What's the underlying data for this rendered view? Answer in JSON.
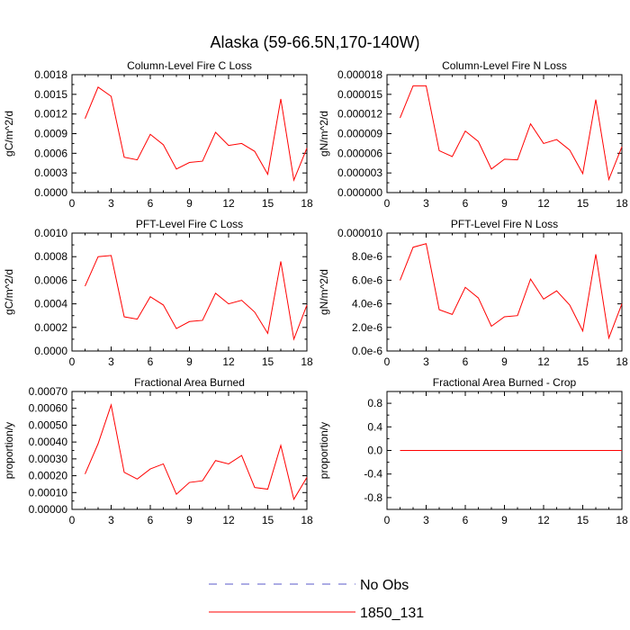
{
  "figure": {
    "title": "Alaska (59-66.5N,170-140W)"
  },
  "legend": {
    "placement": "bottom-center",
    "entries": [
      {
        "label": "No Obs",
        "color": "#5a5ac8",
        "dash": true
      },
      {
        "label": "1850_131",
        "color": "#ff0000",
        "dash": false
      }
    ]
  },
  "colors": {
    "series": "#ff0000",
    "axis": "#000000"
  },
  "chart_data": [
    {
      "type": "line",
      "title": "Column-Level Fire C Loss",
      "ylabel": "gC/m^2/d",
      "xlabel": "",
      "xlim": [
        0,
        18
      ],
      "xticks": [
        0,
        3,
        6,
        9,
        12,
        15,
        18
      ],
      "xtick_labels": [
        "0",
        "3",
        "6",
        "9",
        "12",
        "15",
        "18"
      ],
      "ylim": [
        0,
        0.0018
      ],
      "yticks": [
        0,
        0.0003,
        0.0006,
        0.0009,
        0.0012,
        0.0015,
        0.0018
      ],
      "ytick_labels": [
        "0.0000",
        "0.0003",
        "0.0006",
        "0.0009",
        "0.0012",
        "0.0015",
        "0.0018"
      ],
      "series": [
        {
          "name": "1850_131",
          "x": [
            1,
            2,
            3,
            4,
            5,
            6,
            7,
            8,
            9,
            10,
            11,
            12,
            13,
            14,
            15,
            16,
            17,
            18
          ],
          "values": [
            0.00113,
            0.00161,
            0.00147,
            0.00054,
            0.0005,
            0.00089,
            0.00073,
            0.00036,
            0.00046,
            0.00048,
            0.00092,
            0.00072,
            0.00075,
            0.00063,
            0.00028,
            0.00143,
            0.00019,
            0.00068
          ]
        }
      ]
    },
    {
      "type": "line",
      "title": "Column-Level Fire N Loss",
      "ylabel": "gN/m^2/d",
      "xlabel": "",
      "xlim": [
        0,
        18
      ],
      "xticks": [
        0,
        3,
        6,
        9,
        12,
        15,
        18
      ],
      "xtick_labels": [
        "0",
        "3",
        "6",
        "9",
        "12",
        "15",
        "18"
      ],
      "ylim": [
        0,
        1.8e-05
      ],
      "yticks": [
        0,
        3e-06,
        6e-06,
        9e-06,
        1.2e-05,
        1.5e-05,
        1.8e-05
      ],
      "ytick_labels": [
        "0.000000",
        "0.000003",
        "0.000006",
        "0.000009",
        "0.000012",
        "0.000015",
        "0.000018"
      ],
      "series": [
        {
          "name": "1850_131",
          "x": [
            1,
            2,
            3,
            4,
            5,
            6,
            7,
            8,
            9,
            10,
            11,
            12,
            13,
            14,
            15,
            16,
            17,
            18
          ],
          "values": [
            1.14e-05,
            1.63e-05,
            1.63e-05,
            6.4e-06,
            5.5e-06,
            9.4e-06,
            7.8e-06,
            3.6e-06,
            5.1e-06,
            5e-06,
            1.05e-05,
            7.5e-06,
            8.1e-06,
            6.5e-06,
            2.9e-06,
            1.42e-05,
            2e-06,
            7e-06
          ]
        }
      ]
    },
    {
      "type": "line",
      "title": "PFT-Level Fire C Loss",
      "ylabel": "gC/m^2/d",
      "xlabel": "",
      "xlim": [
        0,
        18
      ],
      "xticks": [
        0,
        3,
        6,
        9,
        12,
        15,
        18
      ],
      "xtick_labels": [
        "0",
        "3",
        "6",
        "9",
        "12",
        "15",
        "18"
      ],
      "ylim": [
        0,
        0.001
      ],
      "yticks": [
        0,
        0.0002,
        0.0004,
        0.0006,
        0.0008,
        0.001
      ],
      "ytick_labels": [
        "0.0000",
        "0.0002",
        "0.0004",
        "0.0006",
        "0.0008",
        "0.0010"
      ],
      "series": [
        {
          "name": "1850_131",
          "x": [
            1,
            2,
            3,
            4,
            5,
            6,
            7,
            8,
            9,
            10,
            11,
            12,
            13,
            14,
            15,
            16,
            17,
            18
          ],
          "values": [
            0.00055,
            0.0008,
            0.00081,
            0.00029,
            0.00027,
            0.00046,
            0.00039,
            0.00019,
            0.00025,
            0.00026,
            0.00049,
            0.0004,
            0.00043,
            0.00033,
            0.00015,
            0.00076,
            0.0001,
            0.00039
          ]
        }
      ]
    },
    {
      "type": "line",
      "title": "PFT-Level Fire N Loss",
      "ylabel": "gN/m^2/d",
      "xlabel": "",
      "xlim": [
        0,
        18
      ],
      "xticks": [
        0,
        3,
        6,
        9,
        12,
        15,
        18
      ],
      "xtick_labels": [
        "0",
        "3",
        "6",
        "9",
        "12",
        "15",
        "18"
      ],
      "ylim": [
        0,
        1e-05
      ],
      "yticks": [
        0,
        2e-06,
        4e-06,
        6e-06,
        8e-06,
        1e-05
      ],
      "ytick_labels": [
        "0.0e-6",
        "2.0e-6",
        "4.0e-6",
        "6.0e-6",
        "8.0e-6",
        "0.000010"
      ],
      "series": [
        {
          "name": "1850_131",
          "x": [
            1,
            2,
            3,
            4,
            5,
            6,
            7,
            8,
            9,
            10,
            11,
            12,
            13,
            14,
            15,
            16,
            17,
            18
          ],
          "values": [
            6e-06,
            8.8e-06,
            9.1e-06,
            3.5e-06,
            3.1e-06,
            5.4e-06,
            4.5e-06,
            2.1e-06,
            2.9e-06,
            3e-06,
            6.1e-06,
            4.4e-06,
            5.1e-06,
            3.9e-06,
            1.7e-06,
            8.2e-06,
            1.1e-06,
            4e-06
          ]
        }
      ]
    },
    {
      "type": "line",
      "title": "Fractional Area Burned",
      "ylabel": "proportion/y",
      "xlabel": "",
      "xlim": [
        0,
        18
      ],
      "xticks": [
        0,
        3,
        6,
        9,
        12,
        15,
        18
      ],
      "xtick_labels": [
        "0",
        "3",
        "6",
        "9",
        "12",
        "15",
        "18"
      ],
      "ylim": [
        0,
        0.0007
      ],
      "yticks": [
        0,
        0.0001,
        0.0002,
        0.0003,
        0.0004,
        0.0005,
        0.0006,
        0.0007
      ],
      "ytick_labels": [
        "0.00000",
        "0.00010",
        "0.00020",
        "0.00030",
        "0.00040",
        "0.00050",
        "0.00060",
        "0.00070"
      ],
      "series": [
        {
          "name": "1850_131",
          "x": [
            1,
            2,
            3,
            4,
            5,
            6,
            7,
            8,
            9,
            10,
            11,
            12,
            13,
            14,
            15,
            16,
            17,
            18
          ],
          "values": [
            0.00021,
            0.00039,
            0.00062,
            0.00022,
            0.00018,
            0.00024,
            0.00027,
            9e-05,
            0.00016,
            0.00017,
            0.00029,
            0.00027,
            0.00032,
            0.00013,
            0.00012,
            0.00038,
            6e-05,
            0.00019
          ]
        }
      ]
    },
    {
      "type": "line",
      "title": "Fractional Area Burned - Crop",
      "ylabel": "proportion/y",
      "xlabel": "",
      "xlim": [
        0,
        18
      ],
      "xticks": [
        0,
        3,
        6,
        9,
        12,
        15,
        18
      ],
      "xtick_labels": [
        "0",
        "3",
        "6",
        "9",
        "12",
        "15",
        "18"
      ],
      "ylim": [
        -1,
        1
      ],
      "yticks": [
        -0.8,
        -0.4,
        0,
        0.4,
        0.8
      ],
      "ytick_labels": [
        "-0.8",
        "-0.4",
        "0.0",
        "0.4",
        "0.8"
      ],
      "series": [
        {
          "name": "1850_131",
          "x": [
            1,
            2,
            3,
            4,
            5,
            6,
            7,
            8,
            9,
            10,
            11,
            12,
            13,
            14,
            15,
            16,
            17,
            18
          ],
          "values": [
            0,
            0,
            0,
            0,
            0,
            0,
            0,
            0,
            0,
            0,
            0,
            0,
            0,
            0,
            0,
            0,
            0,
            0
          ]
        }
      ]
    }
  ]
}
